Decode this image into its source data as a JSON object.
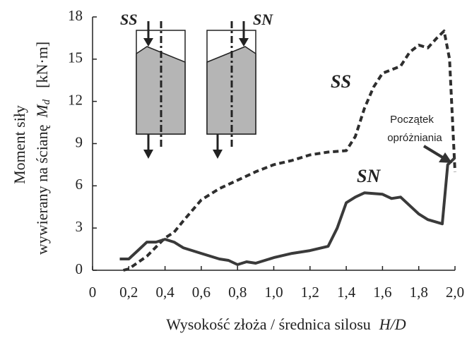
{
  "chart_data": {
    "type": "line",
    "y_label": {
      "line1": "Moment siły",
      "line2": "wywierany na ścianę",
      "symbol": "M",
      "subscript": "d",
      "unit": "[kN·m]"
    },
    "x_label": {
      "text": "Wysokość złoża / średnica silosu",
      "symbol": "H/D"
    },
    "xlim": [
      0,
      2.0
    ],
    "ylim": [
      0,
      18
    ],
    "xticks": [
      0,
      {
        "value": 0.2,
        "label": "0,2"
      },
      {
        "value": 0.4,
        "label": "0,4"
      },
      {
        "value": 0.6,
        "label": "0,6"
      },
      {
        "value": 0.8,
        "label": "0,8"
      },
      {
        "value": 1.0,
        "label": "1,0"
      },
      {
        "value": 1.2,
        "label": "1,2"
      },
      {
        "value": 1.4,
        "label": "1,4"
      },
      {
        "value": 1.6,
        "label": "1,6"
      },
      {
        "value": 1.8,
        "label": "1,8"
      },
      {
        "value": 2.0,
        "label": "2,0"
      }
    ],
    "yticks": [
      0,
      3,
      6,
      9,
      12,
      15,
      18
    ],
    "series": [
      {
        "name": "SS",
        "color": "#2e2e2e",
        "dashed": true,
        "x": [
          0.17,
          0.2,
          0.3,
          0.4,
          0.45,
          0.5,
          0.6,
          0.7,
          0.8,
          0.9,
          1.0,
          1.1,
          1.2,
          1.3,
          1.4,
          1.45,
          1.5,
          1.55,
          1.6,
          1.7,
          1.75,
          1.8,
          1.85,
          1.9,
          1.94,
          1.97,
          2.0
        ],
        "values": [
          0,
          0.1,
          1.0,
          2.3,
          2.7,
          3.5,
          5.0,
          5.8,
          6.4,
          7.0,
          7.5,
          7.8,
          8.2,
          8.4,
          8.5,
          9.5,
          11.5,
          13.0,
          14.0,
          14.5,
          15.5,
          16.0,
          15.8,
          16.5,
          17.0,
          15.0,
          7.0
        ]
      },
      {
        "name": "SN",
        "color": "#3a3a3a",
        "dashed": false,
        "x": [
          0.15,
          0.2,
          0.25,
          0.3,
          0.35,
          0.4,
          0.45,
          0.5,
          0.6,
          0.7,
          0.75,
          0.8,
          0.85,
          0.9,
          1.0,
          1.1,
          1.2,
          1.3,
          1.35,
          1.4,
          1.45,
          1.5,
          1.6,
          1.65,
          1.7,
          1.75,
          1.8,
          1.85,
          1.93,
          1.96,
          2.0
        ],
        "values": [
          0.8,
          0.8,
          1.4,
          2.0,
          2.0,
          2.2,
          2.0,
          1.6,
          1.2,
          0.8,
          0.7,
          0.4,
          0.6,
          0.5,
          0.9,
          1.2,
          1.4,
          1.7,
          3.0,
          4.8,
          5.2,
          5.5,
          5.4,
          5.1,
          5.2,
          4.6,
          4.0,
          3.6,
          3.3,
          7.5,
          8.0
        ]
      }
    ],
    "annotations": [
      "SS",
      "SN",
      "Początek",
      "opróżniania"
    ],
    "inset_labels": [
      "SS",
      "SN"
    ]
  }
}
